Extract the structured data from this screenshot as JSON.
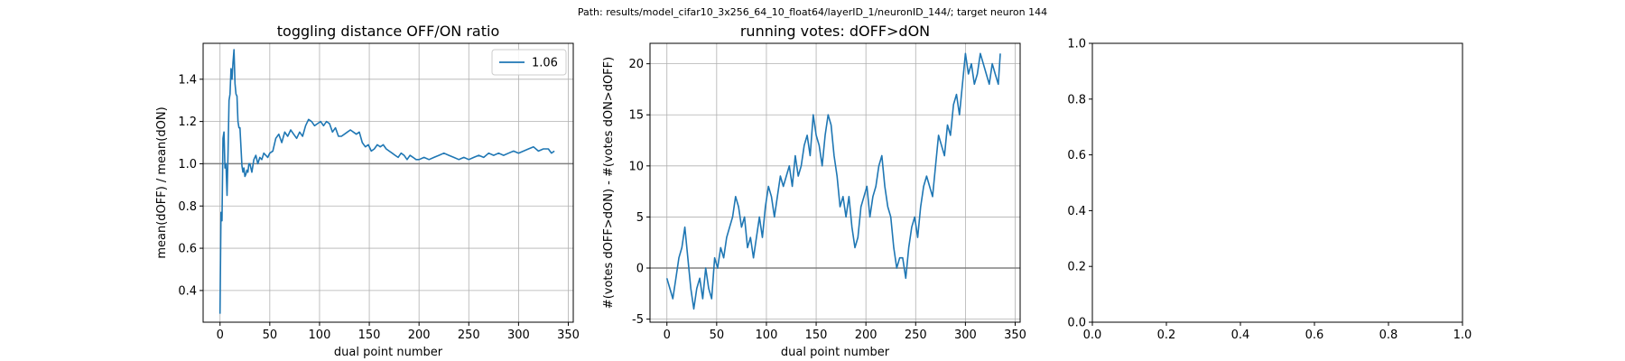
{
  "suptitle": "Path: results/model_cifar10_3x256_64_10_float64/layerID_1/neuronID_144/; target neuron 144",
  "colors": {
    "line": "#1f77b4",
    "refline": "#808080",
    "grid": "#b0b0b0"
  },
  "chart_data": [
    {
      "type": "line",
      "title": "toggling distance OFF/ON ratio",
      "xlabel": "dual point number",
      "ylabel": "mean(dOFF) / mean(dON)",
      "xlim": [
        -17,
        355
      ],
      "ylim": [
        0.25,
        1.57
      ],
      "xticks": [
        0,
        50,
        100,
        150,
        200,
        250,
        300,
        350
      ],
      "yticks": [
        0.4,
        0.6,
        0.8,
        1.0,
        1.2,
        1.4
      ],
      "grid": true,
      "reference_line": 1.0,
      "legend": {
        "placement": "upper right",
        "entries": [
          "1.06"
        ]
      },
      "series": [
        {
          "name": "1.06",
          "x": [
            0,
            1,
            2,
            3,
            4,
            5,
            6,
            7,
            8,
            9,
            10,
            11,
            12,
            13,
            14,
            15,
            16,
            17,
            18,
            19,
            20,
            21,
            22,
            23,
            24,
            25,
            26,
            27,
            28,
            29,
            30,
            32,
            34,
            36,
            38,
            40,
            42,
            44,
            46,
            48,
            50,
            53,
            56,
            59,
            62,
            65,
            68,
            71,
            74,
            77,
            80,
            83,
            86,
            89,
            92,
            95,
            98,
            101,
            104,
            107,
            110,
            113,
            116,
            119,
            122,
            125,
            128,
            131,
            134,
            137,
            140,
            143,
            146,
            149,
            152,
            155,
            158,
            161,
            164,
            167,
            170,
            173,
            176,
            179,
            182,
            185,
            188,
            191,
            194,
            197,
            200,
            205,
            210,
            215,
            220,
            225,
            230,
            235,
            240,
            245,
            250,
            255,
            260,
            265,
            270,
            275,
            280,
            285,
            290,
            295,
            300,
            305,
            310,
            315,
            320,
            325,
            330,
            333,
            336
          ],
          "y": [
            0.29,
            0.77,
            0.73,
            1.12,
            1.15,
            0.98,
            1.0,
            0.85,
            1.05,
            1.3,
            1.33,
            1.45,
            1.4,
            1.48,
            1.54,
            1.38,
            1.33,
            1.32,
            1.2,
            1.17,
            1.17,
            1.08,
            0.99,
            0.96,
            0.98,
            0.94,
            0.95,
            0.97,
            0.96,
            1.0,
            1.0,
            0.96,
            1.02,
            1.04,
            1.0,
            1.03,
            1.02,
            1.05,
            1.04,
            1.03,
            1.05,
            1.06,
            1.12,
            1.14,
            1.1,
            1.15,
            1.13,
            1.16,
            1.14,
            1.12,
            1.15,
            1.13,
            1.18,
            1.21,
            1.2,
            1.18,
            1.19,
            1.2,
            1.18,
            1.2,
            1.19,
            1.15,
            1.17,
            1.13,
            1.13,
            1.14,
            1.15,
            1.16,
            1.15,
            1.14,
            1.15,
            1.1,
            1.08,
            1.09,
            1.06,
            1.07,
            1.09,
            1.08,
            1.09,
            1.07,
            1.06,
            1.05,
            1.04,
            1.03,
            1.05,
            1.04,
            1.02,
            1.04,
            1.03,
            1.02,
            1.02,
            1.03,
            1.02,
            1.03,
            1.04,
            1.05,
            1.04,
            1.03,
            1.02,
            1.03,
            1.02,
            1.03,
            1.04,
            1.03,
            1.05,
            1.04,
            1.05,
            1.04,
            1.05,
            1.06,
            1.05,
            1.06,
            1.07,
            1.08,
            1.06,
            1.07,
            1.07,
            1.05,
            1.06
          ]
        }
      ]
    },
    {
      "type": "line",
      "title": "running votes: dOFF>dON",
      "xlabel": "dual point number",
      "ylabel": "#(votes dOFF>dON) - #(votes dON>dOFF)",
      "xlim": [
        -17,
        355
      ],
      "ylim": [
        -5.3,
        22
      ],
      "xticks": [
        0,
        50,
        100,
        150,
        200,
        250,
        300,
        350
      ],
      "yticks": [
        -5,
        0,
        5,
        10,
        15,
        20
      ],
      "grid": true,
      "reference_line": 0,
      "series": [
        {
          "name": "",
          "x": [
            0,
            3,
            6,
            9,
            12,
            15,
            18,
            21,
            24,
            27,
            30,
            33,
            36,
            39,
            42,
            45,
            48,
            51,
            54,
            57,
            60,
            63,
            66,
            69,
            72,
            75,
            78,
            81,
            84,
            87,
            90,
            93,
            96,
            99,
            102,
            105,
            108,
            111,
            114,
            117,
            120,
            123,
            126,
            129,
            132,
            135,
            138,
            141,
            144,
            147,
            150,
            153,
            156,
            159,
            162,
            165,
            168,
            171,
            174,
            177,
            180,
            183,
            186,
            189,
            192,
            195,
            198,
            201,
            204,
            207,
            210,
            213,
            216,
            219,
            222,
            225,
            228,
            231,
            234,
            237,
            240,
            243,
            246,
            249,
            252,
            255,
            258,
            261,
            264,
            267,
            270,
            273,
            276,
            279,
            282,
            285,
            288,
            291,
            294,
            297,
            300,
            303,
            306,
            309,
            312,
            315,
            318,
            321,
            324,
            327,
            330,
            333,
            335
          ],
          "y": [
            -1,
            -2,
            -3,
            -1,
            1,
            2,
            4,
            1,
            -2,
            -4,
            -2,
            -1,
            -3,
            0,
            -2,
            -3,
            1,
            0,
            2,
            1,
            3,
            4,
            5,
            7,
            6,
            4,
            5,
            2,
            3,
            1,
            3,
            5,
            3,
            6,
            8,
            7,
            5,
            7,
            9,
            8,
            9,
            10,
            8,
            11,
            9,
            10,
            12,
            13,
            11,
            15,
            13,
            12,
            10,
            13,
            15,
            14,
            11,
            9,
            6,
            7,
            5,
            7,
            4,
            2,
            3,
            6,
            7,
            8,
            5,
            7,
            8,
            10,
            11,
            8,
            6,
            5,
            2,
            0,
            1,
            1,
            -1,
            2,
            4,
            5,
            3,
            6,
            8,
            9,
            8,
            7,
            10,
            13,
            12,
            11,
            14,
            13,
            16,
            17,
            15,
            18,
            21,
            19,
            20,
            18,
            19,
            21,
            20,
            19,
            18,
            20,
            19,
            18,
            21
          ]
        }
      ]
    },
    {
      "type": "line",
      "title": "",
      "xlabel": "",
      "ylabel": "",
      "xlim": [
        0,
        1
      ],
      "ylim": [
        0,
        1
      ],
      "xticks": [
        0.0,
        0.2,
        0.4,
        0.6,
        0.8,
        1.0
      ],
      "yticks": [
        0.0,
        0.2,
        0.4,
        0.6,
        0.8,
        1.0
      ],
      "grid": false,
      "series": []
    }
  ]
}
